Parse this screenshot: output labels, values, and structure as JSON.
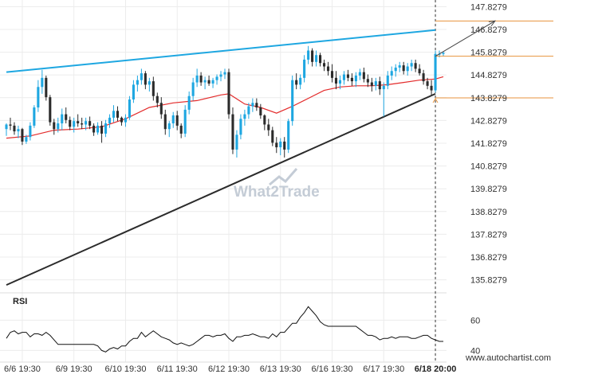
{
  "chart_data": {
    "type": "candlestick",
    "instrument_view": "price chart with moving average and pattern lines",
    "y_ticks": [
      "147.8279",
      "146.8279",
      "145.8279",
      "144.8279",
      "143.8279",
      "142.8279",
      "141.8279",
      "140.8279",
      "139.8279",
      "138.8279",
      "137.8279",
      "136.8279",
      "135.8279"
    ],
    "y_tick_values": [
      147.8279,
      146.8279,
      145.8279,
      144.8279,
      143.8279,
      142.8279,
      141.8279,
      140.8279,
      139.8279,
      138.8279,
      137.8279,
      136.8279,
      135.8279
    ],
    "ylim": [
      135.36,
      148.12
    ],
    "x_ticks": [
      "6/6 19:30",
      "6/9 19:30",
      "6/10 19:30",
      "6/11 19:30",
      "6/12 19:30",
      "6/13 19:30",
      "6/16 19:30",
      "6/17 19:30",
      "6/18 20:00"
    ],
    "x_tick_index": [
      4,
      17,
      30,
      43,
      56,
      69,
      82,
      95,
      108
    ],
    "n_bars": 111,
    "candles": [
      [
        142.45,
        142.7,
        142.15,
        142.65
      ],
      [
        142.65,
        142.95,
        142.4,
        142.6
      ],
      [
        142.6,
        142.75,
        142.2,
        142.35
      ],
      [
        142.35,
        142.6,
        142.05,
        142.45
      ],
      [
        142.45,
        142.5,
        141.75,
        141.9
      ],
      [
        141.9,
        142.2,
        141.8,
        142.1
      ],
      [
        142.1,
        142.75,
        141.95,
        142.6
      ],
      [
        142.6,
        143.5,
        142.5,
        143.4
      ],
      [
        143.4,
        144.6,
        143.2,
        144.3
      ],
      [
        144.3,
        145.05,
        144.0,
        144.7
      ],
      [
        144.7,
        144.8,
        143.7,
        143.85
      ],
      [
        143.85,
        143.95,
        142.6,
        142.75
      ],
      [
        142.75,
        142.9,
        142.2,
        142.45
      ],
      [
        142.45,
        142.95,
        142.3,
        142.7
      ],
      [
        142.7,
        143.35,
        142.4,
        143.1
      ],
      [
        143.1,
        143.4,
        142.7,
        142.85
      ],
      [
        142.85,
        143.0,
        142.4,
        142.55
      ],
      [
        142.55,
        142.95,
        142.3,
        142.8
      ],
      [
        142.8,
        143.1,
        142.55,
        142.7
      ],
      [
        142.7,
        142.95,
        142.45,
        142.65
      ],
      [
        142.65,
        142.95,
        142.4,
        142.8
      ],
      [
        142.8,
        143.0,
        142.45,
        142.6
      ],
      [
        142.6,
        142.7,
        142.15,
        142.3
      ],
      [
        142.3,
        142.75,
        142.2,
        142.6
      ],
      [
        142.6,
        142.8,
        141.85,
        142.25
      ],
      [
        142.25,
        142.85,
        142.1,
        142.7
      ],
      [
        142.7,
        143.1,
        142.5,
        142.95
      ],
      [
        142.95,
        143.5,
        142.75,
        143.25
      ],
      [
        143.25,
        143.45,
        142.8,
        142.95
      ],
      [
        142.95,
        143.0,
        142.6,
        142.75
      ],
      [
        142.75,
        143.1,
        142.55,
        142.95
      ],
      [
        142.95,
        143.9,
        142.85,
        143.75
      ],
      [
        143.75,
        144.6,
        143.6,
        144.4
      ],
      [
        144.4,
        144.8,
        144.1,
        144.6
      ],
      [
        144.6,
        145.1,
        144.4,
        144.9
      ],
      [
        144.9,
        145.0,
        144.2,
        144.4
      ],
      [
        144.4,
        144.7,
        144.1,
        144.55
      ],
      [
        144.55,
        144.75,
        143.7,
        143.9
      ],
      [
        143.9,
        144.05,
        143.4,
        143.6
      ],
      [
        143.6,
        143.85,
        142.9,
        143.1
      ],
      [
        143.1,
        143.3,
        142.2,
        142.45
      ],
      [
        142.45,
        142.8,
        142.1,
        142.7
      ],
      [
        142.7,
        143.2,
        142.5,
        143.05
      ],
      [
        143.05,
        143.25,
        142.4,
        142.6
      ],
      [
        142.6,
        142.7,
        142.05,
        142.25
      ],
      [
        142.25,
        143.5,
        142.1,
        143.3
      ],
      [
        143.3,
        144.1,
        143.1,
        143.9
      ],
      [
        143.9,
        144.7,
        143.7,
        144.5
      ],
      [
        144.5,
        145.1,
        144.3,
        144.8
      ],
      [
        144.8,
        144.95,
        144.35,
        144.5
      ],
      [
        144.5,
        144.75,
        144.2,
        144.6
      ],
      [
        144.6,
        144.8,
        144.35,
        144.45
      ],
      [
        144.45,
        144.7,
        144.25,
        144.6
      ],
      [
        144.6,
        144.85,
        144.4,
        144.75
      ],
      [
        144.75,
        145.0,
        144.55,
        144.85
      ],
      [
        144.85,
        145.1,
        144.65,
        144.95
      ],
      [
        144.95,
        145.1,
        142.9,
        143.1
      ],
      [
        143.1,
        143.4,
        141.35,
        141.55
      ],
      [
        141.55,
        142.4,
        141.2,
        142.2
      ],
      [
        142.2,
        143.1,
        142.0,
        142.9
      ],
      [
        142.9,
        143.3,
        142.6,
        143.1
      ],
      [
        143.1,
        143.6,
        142.9,
        143.45
      ],
      [
        143.45,
        143.8,
        143.2,
        143.6
      ],
      [
        143.6,
        143.8,
        143.25,
        143.4
      ],
      [
        143.4,
        143.55,
        142.9,
        143.05
      ],
      [
        143.05,
        143.1,
        142.4,
        142.65
      ],
      [
        142.65,
        142.9,
        142.15,
        142.4
      ],
      [
        142.4,
        142.55,
        141.7,
        141.85
      ],
      [
        141.85,
        142.1,
        141.4,
        141.65
      ],
      [
        141.65,
        142.05,
        141.3,
        141.9
      ],
      [
        141.9,
        142.1,
        141.2,
        141.55
      ],
      [
        141.55,
        142.9,
        141.4,
        142.8
      ],
      [
        142.8,
        144.8,
        142.6,
        144.6
      ],
      [
        144.6,
        144.9,
        144.2,
        144.4
      ],
      [
        144.4,
        144.85,
        144.2,
        144.7
      ],
      [
        144.7,
        145.7,
        144.5,
        145.5
      ],
      [
        145.5,
        146.1,
        145.3,
        145.9
      ],
      [
        145.9,
        146.0,
        145.2,
        145.4
      ],
      [
        145.4,
        145.9,
        145.2,
        145.7
      ],
      [
        145.7,
        145.8,
        145.2,
        145.35
      ],
      [
        145.35,
        145.5,
        145.0,
        145.2
      ],
      [
        145.2,
        145.4,
        144.8,
        145.0
      ],
      [
        145.0,
        145.3,
        144.5,
        144.7
      ],
      [
        144.7,
        145.0,
        144.2,
        144.45
      ],
      [
        144.45,
        144.8,
        144.2,
        144.6
      ],
      [
        144.6,
        145.0,
        144.4,
        144.85
      ],
      [
        144.85,
        145.05,
        144.55,
        144.7
      ],
      [
        144.7,
        144.9,
        144.35,
        144.55
      ],
      [
        144.55,
        144.95,
        144.3,
        144.8
      ],
      [
        144.8,
        145.1,
        144.6,
        144.95
      ],
      [
        144.95,
        145.15,
        144.5,
        144.65
      ],
      [
        144.65,
        144.85,
        144.3,
        144.5
      ],
      [
        144.5,
        144.7,
        144.1,
        144.35
      ],
      [
        144.35,
        144.7,
        144.15,
        144.55
      ],
      [
        144.55,
        144.75,
        143.95,
        144.2
      ],
      [
        144.2,
        144.5,
        143.0,
        144.35
      ],
      [
        144.35,
        145.0,
        144.2,
        144.8
      ],
      [
        144.8,
        145.2,
        144.6,
        145.0
      ],
      [
        145.0,
        145.3,
        144.75,
        145.15
      ],
      [
        145.15,
        145.4,
        144.95,
        145.25
      ],
      [
        145.25,
        145.4,
        144.85,
        145.0
      ],
      [
        145.0,
        145.35,
        144.8,
        145.2
      ],
      [
        145.2,
        145.5,
        145.0,
        145.35
      ],
      [
        145.35,
        145.5,
        144.95,
        145.1
      ],
      [
        145.1,
        145.3,
        144.8,
        144.9
      ],
      [
        144.9,
        145.05,
        144.4,
        144.55
      ],
      [
        144.55,
        144.7,
        144.2,
        144.35
      ],
      [
        144.35,
        144.6,
        143.9,
        144.15
      ],
      [
        144.15,
        145.9,
        144.05,
        145.75
      ],
      [
        145.75,
        145.9,
        145.6,
        145.75
      ],
      [
        145.75,
        145.85,
        145.65,
        145.8
      ]
    ],
    "ma": [
      [
        0,
        142.05
      ],
      [
        6,
        142.15
      ],
      [
        12,
        142.4
      ],
      [
        18,
        142.45
      ],
      [
        24,
        142.55
      ],
      [
        30,
        142.9
      ],
      [
        36,
        143.4
      ],
      [
        42,
        143.6
      ],
      [
        48,
        143.7
      ],
      [
        54,
        143.95
      ],
      [
        56,
        144.0
      ],
      [
        60,
        143.55
      ],
      [
        64,
        143.4
      ],
      [
        68,
        143.15
      ],
      [
        72,
        143.45
      ],
      [
        76,
        143.8
      ],
      [
        80,
        144.15
      ],
      [
        84,
        144.3
      ],
      [
        88,
        144.35
      ],
      [
        92,
        144.35
      ],
      [
        96,
        144.4
      ],
      [
        100,
        144.5
      ],
      [
        104,
        144.6
      ],
      [
        108,
        144.65
      ],
      [
        110,
        144.75
      ]
    ],
    "upper_trendline": [
      [
        0,
        144.95
      ],
      [
        108,
        146.8
      ]
    ],
    "lower_trendline": [
      [
        0,
        135.6
      ],
      [
        108,
        144.0
      ]
    ],
    "resistance_level": 145.65,
    "support_level": 143.82,
    "target_level": 147.2,
    "forecast_arrow": [
      [
        108,
        145.65
      ],
      [
        119,
        147.2
      ]
    ],
    "colors": {
      "bull": "#1ea7e1",
      "bear": "#2b2b2b",
      "ma": "#e32b2b",
      "upper_line": "#1ea7e1",
      "lower_line": "#2b2b2b",
      "levels": "#e8933c",
      "grid": "#ececec"
    },
    "rsi": {
      "title": "RSI",
      "y_ticks": [
        "60",
        "40"
      ],
      "y_tick_values": [
        60,
        40
      ],
      "ylim": [
        36,
        76
      ],
      "values": [
        48,
        52,
        53,
        51,
        52,
        52,
        49,
        51,
        51,
        50,
        52,
        50,
        47,
        44,
        44,
        44,
        44,
        44,
        44,
        44,
        44,
        44,
        44,
        43,
        40,
        39,
        41,
        42,
        41,
        43,
        43,
        46,
        48,
        48,
        52,
        49,
        51,
        53,
        51,
        49,
        48,
        47,
        45,
        44,
        45,
        44,
        43,
        44,
        46,
        48,
        50,
        50,
        49,
        50,
        50,
        51,
        48,
        46,
        49,
        49,
        50,
        50,
        51,
        50,
        49,
        49,
        48,
        51,
        49,
        52,
        52,
        55,
        58,
        58,
        62,
        65,
        69,
        66,
        63,
        59,
        57,
        56,
        56,
        56,
        56,
        56,
        56,
        56,
        56,
        54,
        52,
        50,
        50,
        49,
        47,
        48,
        48,
        49,
        48,
        49,
        49,
        49,
        48,
        48,
        49,
        50,
        50,
        48,
        47,
        46,
        46
      ]
    },
    "watermark": "What2Trade",
    "site": "www.autochartist.com"
  }
}
